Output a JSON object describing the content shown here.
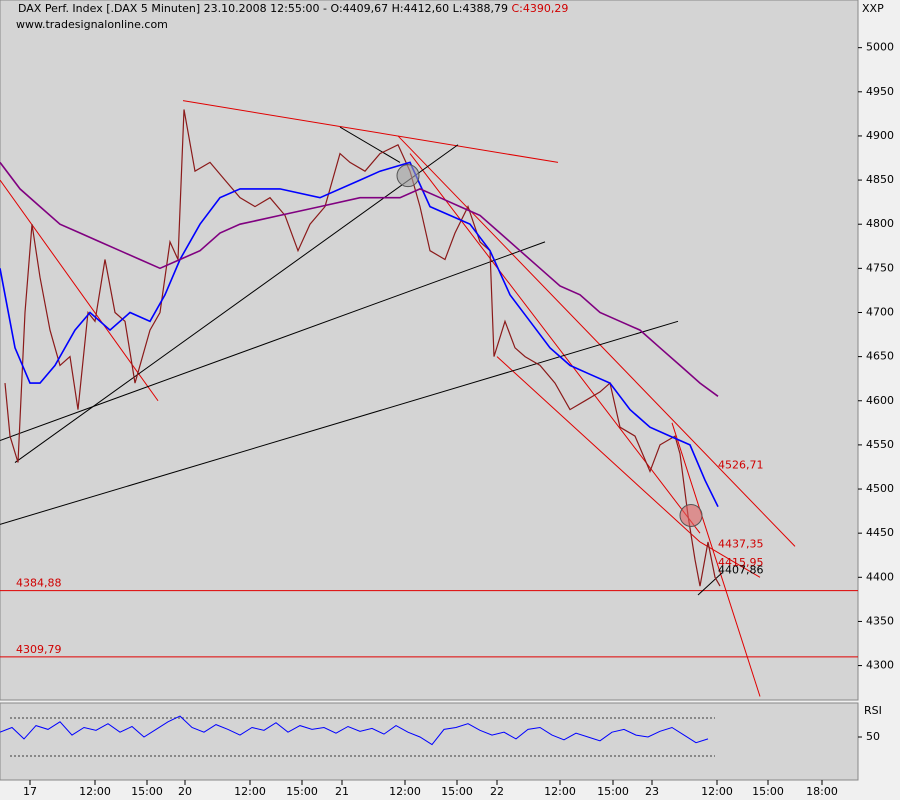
{
  "chart_data": {
    "type": "line",
    "title": "DAX Perf. Index [.DAX  5 Minuten] 23.10.2008 12:55:00 - O:4409,67 H:4412,60 L:4388,79",
    "close_label": "C:4390,29",
    "subtitle": "www.tradesignalonline.com",
    "axis_label": "XXP",
    "xlim": [
      0,
      858
    ],
    "xticks": [
      {
        "value": 30,
        "label": "17"
      },
      {
        "value": 95,
        "label": "12:00"
      },
      {
        "value": 147,
        "label": "15:00"
      },
      {
        "value": 185,
        "label": "20"
      },
      {
        "value": 250,
        "label": "12:00"
      },
      {
        "value": 302,
        "label": "15:00"
      },
      {
        "value": 342,
        "label": "21"
      },
      {
        "value": 405,
        "label": "12:00"
      },
      {
        "value": 457,
        "label": "15:00"
      },
      {
        "value": 497,
        "label": "22"
      },
      {
        "value": 560,
        "label": "12:00"
      },
      {
        "value": 613,
        "label": "15:00"
      },
      {
        "value": 652,
        "label": "23"
      },
      {
        "value": 717,
        "label": "12:00"
      },
      {
        "value": 768,
        "label": "15:00"
      },
      {
        "value": 822,
        "label": "18:00"
      }
    ],
    "ylim": [
      4261,
      5054
    ],
    "yticks": [
      4300,
      4350,
      4400,
      4450,
      4500,
      4550,
      4600,
      4650,
      4700,
      4750,
      4800,
      4850,
      4900,
      4950,
      5000
    ],
    "series": [
      {
        "color": "#8b1a1a",
        "x": [
          5,
          10,
          18,
          25,
          32,
          40,
          50,
          60,
          70,
          78,
          88,
          95,
          105,
          115,
          125,
          135,
          140,
          150,
          160,
          170,
          178,
          184,
          195,
          210,
          225,
          240,
          255,
          270,
          285,
          298,
          310,
          325,
          340,
          350,
          365,
          380,
          398,
          410,
          420,
          430,
          445,
          455,
          468,
          480,
          490,
          494,
          505,
          515,
          525,
          540,
          555,
          570,
          585,
          600,
          610,
          620,
          635,
          650,
          660,
          675,
          680,
          688,
          695,
          700,
          708,
          715,
          720
        ],
        "values": [
          4620,
          4560,
          4530,
          4700,
          4800,
          4740,
          4680,
          4640,
          4650,
          4590,
          4700,
          4690,
          4760,
          4700,
          4690,
          4620,
          4640,
          4680,
          4700,
          4780,
          4760,
          4930,
          4860,
          4870,
          4850,
          4830,
          4820,
          4830,
          4810,
          4770,
          4800,
          4820,
          4880,
          4870,
          4860,
          4880,
          4890,
          4860,
          4820,
          4770,
          4760,
          4790,
          4820,
          4780,
          4770,
          4650,
          4690,
          4660,
          4650,
          4640,
          4620,
          4590,
          4600,
          4610,
          4620,
          4570,
          4560,
          4520,
          4550,
          4560,
          4540,
          4470,
          4420,
          4390,
          4440,
          4400,
          4390
        ]
      },
      {
        "color": "#0000ff",
        "x": [
          0,
          5,
          15,
          30,
          40,
          55,
          75,
          90,
          110,
          130,
          150,
          165,
          180,
          200,
          220,
          240,
          280,
          320,
          360,
          380,
          410,
          430,
          450,
          470,
          490,
          510,
          530,
          550,
          570,
          590,
          610,
          630,
          650,
          670,
          690,
          705,
          718
        ],
        "values": [
          4750,
          4720,
          4660,
          4620,
          4620,
          4640,
          4680,
          4700,
          4680,
          4700,
          4690,
          4720,
          4760,
          4800,
          4830,
          4840,
          4840,
          4830,
          4850,
          4860,
          4870,
          4820,
          4810,
          4800,
          4770,
          4720,
          4690,
          4660,
          4640,
          4630,
          4620,
          4590,
          4570,
          4560,
          4550,
          4510,
          4480
        ]
      },
      {
        "color": "#800080",
        "x": [
          0,
          20,
          40,
          60,
          80,
          100,
          120,
          140,
          160,
          180,
          200,
          220,
          240,
          280,
          320,
          360,
          400,
          420,
          440,
          460,
          480,
          500,
          520,
          540,
          560,
          580,
          600,
          620,
          640,
          660,
          680,
          700,
          718
        ],
        "values": [
          4870,
          4840,
          4820,
          4800,
          4790,
          4780,
          4770,
          4760,
          4750,
          4760,
          4770,
          4790,
          4800,
          4810,
          4820,
          4830,
          4830,
          4840,
          4830,
          4820,
          4810,
          4790,
          4770,
          4750,
          4730,
          4720,
          4700,
          4690,
          4680,
          4660,
          4640,
          4620,
          4605
        ]
      }
    ],
    "trend_lines": [
      {
        "color": "#e00000",
        "x": [
          183,
          558
        ],
        "y": [
          4940,
          4870
        ]
      },
      {
        "color": "#e00000",
        "x": [
          0,
          158
        ],
        "y": [
          4850,
          4600
        ]
      },
      {
        "color": "#e00000",
        "x": [
          398,
          795
        ],
        "y": [
          4900,
          4435
        ]
      },
      {
        "color": "#e00000",
        "x": [
          410,
          700
        ],
        "y": [
          4880,
          4450
        ]
      },
      {
        "color": "#e00000",
        "x": [
          497,
          700
        ],
        "y": [
          4650,
          4440
        ]
      },
      {
        "color": "#e00000",
        "x": [
          672,
          760
        ],
        "y": [
          4575,
          4265
        ]
      },
      {
        "color": "#e00000",
        "x": [
          700,
          760
        ],
        "y": [
          4440,
          4400
        ]
      },
      {
        "color": "#000000",
        "x": [
          15,
          458
        ],
        "y": [
          4530,
          4890
        ]
      },
      {
        "color": "#000000",
        "x": [
          0,
          545
        ],
        "y": [
          4555,
          4780
        ]
      },
      {
        "color": "#000000",
        "x": [
          0,
          678
        ],
        "y": [
          4460,
          4690
        ]
      },
      {
        "color": "#000000",
        "x": [
          340,
          400
        ],
        "y": [
          4910,
          4870
        ]
      },
      {
        "color": "#000000",
        "x": [
          698,
          722
        ],
        "y": [
          4380,
          4405
        ]
      }
    ],
    "markers": [
      {
        "x": 408,
        "y": 4855,
        "color": "#a0a0a0"
      },
      {
        "x": 691,
        "y": 4470,
        "color": "#e06060"
      }
    ],
    "levels": [
      {
        "value": 4384.88,
        "label": "4384,88"
      },
      {
        "value": 4309.79,
        "label": "4309,79"
      }
    ],
    "annotations": [
      {
        "value": 4526.71,
        "label": "4526,71"
      },
      {
        "value": 4437.35,
        "label": "4437,35"
      },
      {
        "value": 4415.95,
        "label": "4415,95"
      },
      {
        "value": 4407.86,
        "label": "4407,86"
      }
    ],
    "rsi": {
      "label": "RSI",
      "color": "#0000ff",
      "ylim": [
        4.7,
        85.8
      ],
      "yticks": [
        50
      ],
      "bands": [
        30,
        70
      ],
      "x": [
        0,
        12,
        24,
        36,
        48,
        60,
        72,
        84,
        96,
        108,
        120,
        132,
        144,
        156,
        168,
        180,
        192,
        204,
        216,
        228,
        240,
        252,
        264,
        276,
        288,
        300,
        312,
        324,
        336,
        348,
        360,
        372,
        384,
        396,
        408,
        420,
        432,
        444,
        456,
        468,
        480,
        492,
        504,
        516,
        528,
        540,
        552,
        564,
        576,
        588,
        600,
        612,
        624,
        636,
        648,
        660,
        672,
        684,
        696,
        708
      ],
      "values": [
        55,
        60,
        48,
        62,
        58,
        66,
        52,
        60,
        57,
        64,
        55,
        61,
        50,
        58,
        66,
        72,
        60,
        55,
        63,
        58,
        52,
        60,
        57,
        65,
        55,
        62,
        58,
        60,
        54,
        61,
        56,
        59,
        53,
        62,
        55,
        50,
        42,
        58,
        60,
        64,
        57,
        52,
        55,
        48,
        58,
        60,
        52,
        47,
        54,
        50,
        46,
        55,
        58,
        52,
        50,
        56,
        60,
        52,
        44,
        48
      ]
    }
  }
}
